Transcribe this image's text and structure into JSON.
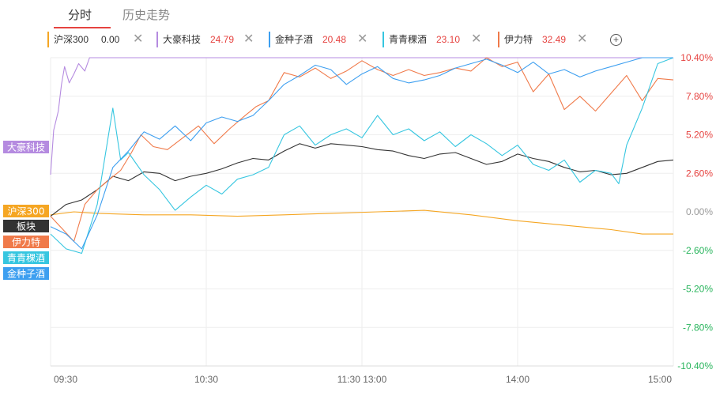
{
  "tabs": [
    {
      "label": "分时",
      "active": true
    },
    {
      "label": "历史走势",
      "active": false
    }
  ],
  "legend": [
    {
      "name": "沪深300",
      "value": "0.00",
      "color": "#f5a623",
      "value_color": "#333333"
    },
    {
      "name": "大豪科技",
      "value": "24.79",
      "color": "#b58be0",
      "value_color": "#e64340"
    },
    {
      "name": "金种子酒",
      "value": "20.48",
      "color": "#3d9ff0",
      "value_color": "#e64340"
    },
    {
      "name": "青青稞酒",
      "value": "23.10",
      "color": "#36c6e0",
      "value_color": "#e64340"
    },
    {
      "name": "伊力特",
      "value": "32.49",
      "color": "#f07a4a",
      "value_color": "#e64340"
    }
  ],
  "controls": {
    "close_glyph": "✕",
    "add_glyph": "+"
  },
  "chart_data": {
    "type": "line",
    "x_ticks": [
      "09:30",
      "10:30",
      "11:30 13:00",
      "14:00",
      "15:00"
    ],
    "y_ticks": [
      "10.40%",
      "7.80%",
      "5.20%",
      "2.60%",
      "0.00%",
      "-2.60%",
      "-5.20%",
      "-7.80%",
      "-10.40%"
    ],
    "ylim": [
      -10.4,
      10.4
    ],
    "y_tick_colors": {
      "positive": "#e64340",
      "zero": "#999999",
      "negative": "#27b45b"
    },
    "series_tags": [
      {
        "label": "大豪科技",
        "color": "#b58be0"
      },
      {
        "label": "沪深300",
        "color": "#f5a623"
      },
      {
        "label": "板块",
        "color": "#333333"
      },
      {
        "label": "伊力特",
        "color": "#f07a4a"
      },
      {
        "label": "青青稞酒",
        "color": "#36c6e0"
      },
      {
        "label": "金种子酒",
        "color": "#3d9ff0"
      }
    ],
    "series": [
      {
        "name": "沪深300",
        "color": "#f5a623",
        "points": [
          [
            0,
            -0.2
          ],
          [
            15,
            0.0
          ],
          [
            30,
            -0.1
          ],
          [
            60,
            -0.2
          ],
          [
            90,
            -0.2
          ],
          [
            120,
            -0.3
          ],
          [
            150,
            -0.2
          ],
          [
            180,
            -0.1
          ],
          [
            210,
            0.0
          ],
          [
            240,
            0.1
          ],
          [
            270,
            -0.2
          ],
          [
            300,
            -0.6
          ],
          [
            330,
            -0.9
          ],
          [
            360,
            -1.2
          ],
          [
            380,
            -1.5
          ],
          [
            400,
            -1.5
          ]
        ]
      },
      {
        "name": "大豪科技",
        "color": "#b58be0",
        "points": [
          [
            0,
            2.5
          ],
          [
            2,
            5.5
          ],
          [
            5,
            6.8
          ],
          [
            7,
            8.6
          ],
          [
            9,
            9.8
          ],
          [
            12,
            8.7
          ],
          [
            15,
            9.3
          ],
          [
            18,
            10.0
          ],
          [
            22,
            9.5
          ],
          [
            25,
            10.4
          ],
          [
            400,
            10.4
          ]
        ]
      },
      {
        "name": "板块",
        "color": "#333333",
        "points": [
          [
            0,
            -0.3
          ],
          [
            10,
            0.5
          ],
          [
            20,
            0.8
          ],
          [
            30,
            1.5
          ],
          [
            40,
            2.4
          ],
          [
            50,
            2.1
          ],
          [
            60,
            2.7
          ],
          [
            70,
            2.6
          ],
          [
            80,
            2.1
          ],
          [
            90,
            2.4
          ],
          [
            100,
            2.6
          ],
          [
            110,
            2.9
          ],
          [
            120,
            3.3
          ],
          [
            130,
            3.6
          ],
          [
            140,
            3.5
          ],
          [
            150,
            4.1
          ],
          [
            160,
            4.6
          ],
          [
            170,
            4.3
          ],
          [
            180,
            4.6
          ],
          [
            190,
            4.5
          ],
          [
            200,
            4.4
          ],
          [
            210,
            4.2
          ],
          [
            220,
            4.1
          ],
          [
            230,
            3.8
          ],
          [
            240,
            3.6
          ],
          [
            250,
            3.9
          ],
          [
            260,
            4.0
          ],
          [
            270,
            3.6
          ],
          [
            280,
            3.2
          ],
          [
            290,
            3.4
          ],
          [
            300,
            3.9
          ],
          [
            310,
            3.6
          ],
          [
            320,
            3.4
          ],
          [
            330,
            3.0
          ],
          [
            340,
            2.7
          ],
          [
            350,
            2.8
          ],
          [
            360,
            2.5
          ],
          [
            370,
            2.6
          ],
          [
            380,
            3.0
          ],
          [
            390,
            3.4
          ],
          [
            400,
            3.5
          ]
        ]
      },
      {
        "name": "伊力特",
        "color": "#f07a4a",
        "points": [
          [
            0,
            -0.3
          ],
          [
            8,
            -1.2
          ],
          [
            15,
            -2.0
          ],
          [
            22,
            0.5
          ],
          [
            30,
            1.5
          ],
          [
            38,
            2.2
          ],
          [
            45,
            2.8
          ],
          [
            52,
            4.0
          ],
          [
            58,
            5.2
          ],
          [
            66,
            4.4
          ],
          [
            75,
            4.2
          ],
          [
            85,
            5.0
          ],
          [
            95,
            5.8
          ],
          [
            105,
            4.6
          ],
          [
            115,
            5.6
          ],
          [
            125,
            6.5
          ],
          [
            132,
            7.1
          ],
          [
            140,
            7.5
          ],
          [
            150,
            9.4
          ],
          [
            160,
            9.1
          ],
          [
            170,
            9.7
          ],
          [
            180,
            9.0
          ],
          [
            190,
            9.5
          ],
          [
            200,
            10.2
          ],
          [
            210,
            9.6
          ],
          [
            220,
            9.2
          ],
          [
            230,
            9.6
          ],
          [
            240,
            9.2
          ],
          [
            250,
            9.4
          ],
          [
            260,
            9.7
          ],
          [
            270,
            9.5
          ],
          [
            280,
            10.4
          ],
          [
            290,
            9.8
          ],
          [
            300,
            10.1
          ],
          [
            310,
            8.1
          ],
          [
            320,
            9.3
          ],
          [
            330,
            6.9
          ],
          [
            340,
            7.8
          ],
          [
            350,
            6.8
          ],
          [
            360,
            8.0
          ],
          [
            370,
            9.2
          ],
          [
            380,
            7.5
          ],
          [
            390,
            9.0
          ],
          [
            400,
            8.9
          ]
        ]
      },
      {
        "name": "青青稞酒",
        "color": "#36c6e0",
        "points": [
          [
            0,
            -1.5
          ],
          [
            10,
            -2.5
          ],
          [
            20,
            -2.8
          ],
          [
            30,
            0.5
          ],
          [
            40,
            7.0
          ],
          [
            45,
            3.5
          ],
          [
            50,
            4.0
          ],
          [
            60,
            2.5
          ],
          [
            70,
            1.5
          ],
          [
            80,
            0.1
          ],
          [
            90,
            1.0
          ],
          [
            100,
            1.8
          ],
          [
            110,
            1.2
          ],
          [
            120,
            2.2
          ],
          [
            130,
            2.5
          ],
          [
            140,
            3.0
          ],
          [
            150,
            5.2
          ],
          [
            160,
            5.8
          ],
          [
            170,
            4.5
          ],
          [
            180,
            5.2
          ],
          [
            190,
            5.6
          ],
          [
            200,
            5.0
          ],
          [
            210,
            6.5
          ],
          [
            220,
            5.2
          ],
          [
            230,
            5.6
          ],
          [
            240,
            4.8
          ],
          [
            250,
            5.4
          ],
          [
            260,
            4.4
          ],
          [
            270,
            5.2
          ],
          [
            280,
            4.6
          ],
          [
            290,
            3.8
          ],
          [
            300,
            4.5
          ],
          [
            310,
            3.2
          ],
          [
            320,
            2.8
          ],
          [
            330,
            3.5
          ],
          [
            340,
            2.0
          ],
          [
            350,
            2.8
          ],
          [
            360,
            2.6
          ],
          [
            365,
            1.9
          ],
          [
            370,
            4.5
          ],
          [
            380,
            7.0
          ],
          [
            390,
            10.0
          ],
          [
            400,
            10.4
          ]
        ]
      },
      {
        "name": "金种子酒",
        "color": "#3d9ff0",
        "points": [
          [
            0,
            -1.0
          ],
          [
            10,
            -1.5
          ],
          [
            20,
            -2.5
          ],
          [
            30,
            -0.2
          ],
          [
            40,
            3.0
          ],
          [
            50,
            4.1
          ],
          [
            60,
            5.4
          ],
          [
            70,
            4.9
          ],
          [
            80,
            5.8
          ],
          [
            90,
            4.8
          ],
          [
            100,
            6.0
          ],
          [
            110,
            6.4
          ],
          [
            120,
            6.1
          ],
          [
            130,
            6.5
          ],
          [
            140,
            7.5
          ],
          [
            150,
            8.6
          ],
          [
            160,
            9.2
          ],
          [
            170,
            9.9
          ],
          [
            180,
            9.6
          ],
          [
            190,
            8.6
          ],
          [
            200,
            9.3
          ],
          [
            210,
            9.8
          ],
          [
            220,
            9.0
          ],
          [
            230,
            8.7
          ],
          [
            240,
            8.9
          ],
          [
            250,
            9.2
          ],
          [
            260,
            9.7
          ],
          [
            270,
            10.0
          ],
          [
            280,
            10.3
          ],
          [
            290,
            9.9
          ],
          [
            300,
            9.4
          ],
          [
            310,
            10.1
          ],
          [
            320,
            9.3
          ],
          [
            330,
            9.6
          ],
          [
            340,
            9.1
          ],
          [
            350,
            9.5
          ],
          [
            360,
            9.8
          ],
          [
            370,
            10.1
          ],
          [
            380,
            10.4
          ],
          [
            400,
            10.4
          ]
        ]
      }
    ]
  }
}
